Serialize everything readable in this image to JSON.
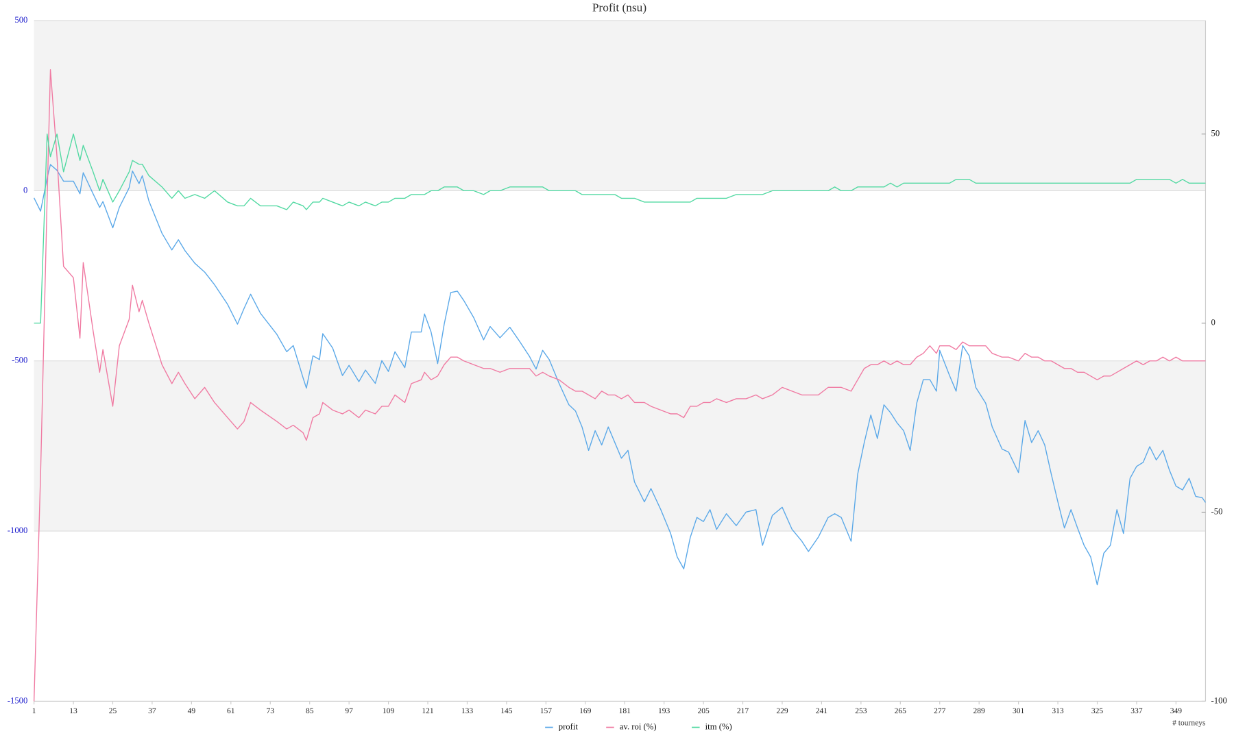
{
  "chart_data": {
    "type": "line",
    "title": "Profit (nsu)",
    "x_label": "# tourneys",
    "x": [
      1,
      3,
      5,
      6,
      8,
      10,
      13,
      15,
      16,
      19,
      21,
      22,
      25,
      27,
      30,
      31,
      33,
      34,
      36,
      40,
      43,
      45,
      47,
      50,
      53,
      56,
      60,
      63,
      65,
      67,
      70,
      75,
      78,
      80,
      83,
      84,
      86,
      88,
      89,
      92,
      95,
      97,
      100,
      102,
      105,
      107,
      109,
      111,
      114,
      116,
      119,
      120,
      122,
      124,
      126,
      128,
      130,
      132,
      135,
      138,
      140,
      143,
      146,
      149,
      152,
      154,
      156,
      158,
      161,
      164,
      166,
      168,
      170,
      172,
      174,
      176,
      178,
      180,
      182,
      184,
      187,
      189,
      192,
      195,
      197,
      199,
      201,
      203,
      205,
      207,
      209,
      212,
      215,
      218,
      221,
      223,
      226,
      229,
      232,
      235,
      237,
      240,
      243,
      245,
      247,
      250,
      252,
      254,
      256,
      258,
      260,
      262,
      264,
      266,
      268,
      270,
      272,
      274,
      276,
      277,
      280,
      282,
      284,
      286,
      288,
      291,
      293,
      296,
      298,
      301,
      303,
      305,
      307,
      309,
      311,
      313,
      315,
      317,
      319,
      321,
      323,
      325,
      327,
      329,
      331,
      333,
      335,
      337,
      339,
      341,
      343,
      345,
      347,
      349,
      351,
      353,
      355,
      357,
      358
    ],
    "series": [
      {
        "name": "profit",
        "color": "#5aa8e8",
        "values": [
          -21,
          -60,
          37,
          77,
          60,
          28,
          28,
          -9,
          53,
          -9,
          -49,
          -32,
          -109,
          -49,
          9,
          58,
          21,
          44,
          -30,
          -125,
          -174,
          -144,
          -176,
          -213,
          -239,
          -276,
          -334,
          -392,
          -346,
          -304,
          -360,
          -422,
          -473,
          -455,
          -550,
          -580,
          -485,
          -496,
          -420,
          -462,
          -543,
          -513,
          -561,
          -527,
          -566,
          -499,
          -531,
          -473,
          -520,
          -415,
          -415,
          -362,
          -415,
          -508,
          -392,
          -299,
          -295,
          -323,
          -373,
          -438,
          -399,
          -432,
          -401,
          -443,
          -487,
          -524,
          -469,
          -496,
          -566,
          -629,
          -647,
          -694,
          -763,
          -705,
          -747,
          -694,
          -740,
          -786,
          -763,
          -856,
          -914,
          -875,
          -937,
          -1007,
          -1076,
          -1111,
          -1018,
          -960,
          -972,
          -937,
          -995,
          -949,
          -984,
          -944,
          -937,
          -1042,
          -954,
          -930,
          -995,
          -1030,
          -1060,
          -1018,
          -960,
          -949,
          -960,
          -1030,
          -833,
          -740,
          -659,
          -728,
          -629,
          -652,
          -682,
          -705,
          -763,
          -624,
          -555,
          -555,
          -589,
          -469,
          -543,
          -589,
          -455,
          -485,
          -578,
          -624,
          -694,
          -759,
          -768,
          -828,
          -675,
          -740,
          -705,
          -747,
          -833,
          -914,
          -991,
          -937,
          -991,
          -1042,
          -1076,
          -1158,
          -1065,
          -1042,
          -937,
          -1007,
          -845,
          -810,
          -798,
          -752,
          -791,
          -763,
          -821,
          -868,
          -879,
          -845,
          -898,
          -902,
          -916
        ]
      },
      {
        "name": "av. roi (%)",
        "color": "#f07aa2",
        "axis": "y2",
        "values": [
          -100,
          -40,
          33,
          67,
          44,
          15,
          12,
          -4,
          16,
          -2,
          -13,
          -7,
          -22,
          -6,
          1,
          10,
          3,
          6,
          0,
          -11,
          -16,
          -13,
          -16,
          -20,
          -17,
          -21,
          -25,
          -28,
          -26,
          -21,
          -23,
          -26,
          -28,
          -27,
          -29,
          -31,
          -25,
          -24,
          -21,
          -23,
          -24,
          -23,
          -25,
          -23,
          -24,
          -22,
          -22,
          -19,
          -21,
          -16,
          -15,
          -13,
          -15,
          -14,
          -11,
          -9,
          -9,
          -10,
          -11,
          -12,
          -12,
          -13,
          -12,
          -12,
          -12,
          -14,
          -13,
          -14,
          -15,
          -17,
          -18,
          -18,
          -19,
          -20,
          -18,
          -19,
          -19,
          -20,
          -19,
          -21,
          -21,
          -22,
          -23,
          -24,
          -24,
          -25,
          -22,
          -22,
          -21,
          -21,
          -20,
          -21,
          -20,
          -20,
          -19,
          -20,
          -19,
          -17,
          -18,
          -19,
          -19,
          -19,
          -17,
          -17,
          -17,
          -18,
          -15,
          -12,
          -11,
          -11,
          -10,
          -11,
          -10,
          -11,
          -11,
          -9,
          -8,
          -6,
          -8,
          -6,
          -6,
          -7,
          -5,
          -6,
          -6,
          -6,
          -8,
          -9,
          -9,
          -10,
          -8,
          -9,
          -9,
          -10,
          -10,
          -11,
          -12,
          -12,
          -13,
          -13,
          -14,
          -15,
          -14,
          -14,
          -13,
          -12,
          -11,
          -10,
          -11,
          -10,
          -10,
          -9,
          -10,
          -9,
          -10,
          -10,
          -10,
          -10,
          -10
        ]
      },
      {
        "name": "itm (%)",
        "color": "#52d9a2",
        "axis": "y2",
        "values": [
          0,
          0,
          50,
          44,
          50,
          40,
          50,
          43,
          47,
          40,
          35,
          38,
          32,
          35,
          40,
          43,
          42,
          42,
          39,
          36,
          33,
          35,
          33,
          34,
          33,
          35,
          32,
          31,
          31,
          33,
          31,
          31,
          30,
          32,
          31,
          30,
          32,
          32,
          33,
          32,
          31,
          32,
          31,
          32,
          31,
          32,
          32,
          33,
          33,
          34,
          34,
          34,
          35,
          35,
          36,
          36,
          36,
          35,
          35,
          34,
          35,
          35,
          36,
          36,
          36,
          36,
          36,
          35,
          35,
          35,
          35,
          34,
          34,
          34,
          34,
          34,
          34,
          33,
          33,
          33,
          32,
          32,
          32,
          32,
          32,
          32,
          32,
          33,
          33,
          33,
          33,
          33,
          34,
          34,
          34,
          34,
          35,
          35,
          35,
          35,
          35,
          35,
          35,
          36,
          35,
          35,
          36,
          36,
          36,
          36,
          36,
          37,
          36,
          37,
          37,
          37,
          37,
          37,
          37,
          37,
          37,
          38,
          38,
          38,
          37,
          37,
          37,
          37,
          37,
          37,
          37,
          37,
          37,
          37,
          37,
          37,
          37,
          37,
          37,
          37,
          37,
          37,
          37,
          37,
          37,
          37,
          37,
          38,
          38,
          38,
          38,
          38,
          38,
          37,
          38,
          37,
          37,
          37,
          37
        ]
      }
    ],
    "xlim": [
      1,
      358
    ],
    "xticks": [
      1,
      13,
      25,
      37,
      49,
      61,
      73,
      85,
      97,
      109,
      121,
      133,
      145,
      157,
      169,
      181,
      193,
      205,
      217,
      229,
      241,
      253,
      265,
      277,
      289,
      301,
      313,
      325,
      337,
      349
    ],
    "ylim": [
      -1500,
      500
    ],
    "yticks": [
      -1500,
      -1000,
      -500,
      0,
      500
    ],
    "y2lim": [
      -100,
      80
    ],
    "y2ticks": [
      -100,
      -50,
      0,
      50
    ],
    "grid": true,
    "legend": "bottom"
  }
}
